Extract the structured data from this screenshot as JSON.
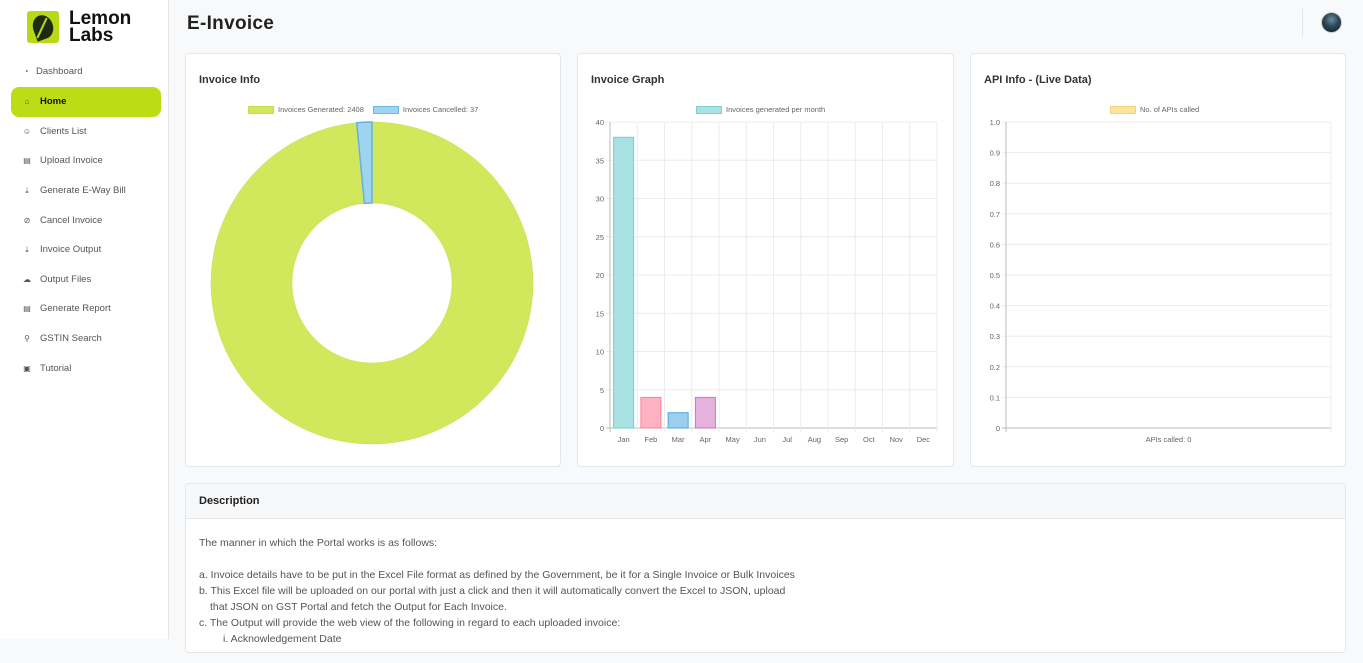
{
  "brand": {
    "line1": "Lemon",
    "line2": "Labs"
  },
  "page": {
    "title": "E-Invoice"
  },
  "sidebar": {
    "items": [
      {
        "label": "Dashboard",
        "icon": "gauge-icon"
      },
      {
        "label": "Home",
        "icon": "home-icon",
        "active": true
      },
      {
        "label": "Clients List",
        "icon": "users-icon"
      },
      {
        "label": "Upload Invoice",
        "icon": "file-icon"
      },
      {
        "label": "Generate E-Way Bill",
        "icon": "download-icon"
      },
      {
        "label": "Cancel Invoice",
        "icon": "ban-icon"
      },
      {
        "label": "Invoice Output",
        "icon": "download-icon"
      },
      {
        "label": "Output Files",
        "icon": "cloud-icon"
      },
      {
        "label": "Generate Report",
        "icon": "file-icon"
      },
      {
        "label": "GSTIN Search",
        "icon": "search-icon"
      },
      {
        "label": "Tutorial",
        "icon": "book-icon"
      }
    ]
  },
  "cards": {
    "invoice_info": {
      "title": "Invoice Info",
      "legend_generated": "Invoices Generated: 2408",
      "legend_cancelled": "Invoices Cancelled: 37"
    },
    "invoice_graph": {
      "title": "Invoice Graph",
      "legend": "Invoices generated per month"
    },
    "api_info": {
      "title": "API Info - (Live Data)",
      "legend": "No. of APIs called",
      "xlabel": "APIs called:  0"
    }
  },
  "chart_data": [
    {
      "type": "pie",
      "labels": [
        "Invoices Generated: 2408",
        "Invoices Cancelled: 37"
      ],
      "values": [
        2408,
        37
      ],
      "colors": [
        "#d2e85c",
        "#9fd4ee"
      ]
    },
    {
      "type": "bar",
      "categories": [
        "Jan",
        "Feb",
        "Mar",
        "Apr",
        "May",
        "Jun",
        "Jul",
        "Aug",
        "Sep",
        "Oct",
        "Nov",
        "Dec"
      ],
      "series": [
        {
          "name": "Invoices generated per month",
          "values": [
            38,
            4,
            2,
            4,
            0,
            0,
            0,
            0,
            0,
            0,
            0,
            0
          ]
        }
      ],
      "colors": [
        "#a8e2e3",
        "#ffb3c2",
        "#9ccfee",
        "#e5b1dd"
      ],
      "ylim": [
        0,
        40
      ],
      "yticks": [
        0,
        5,
        10,
        15,
        20,
        25,
        30,
        35,
        40
      ]
    },
    {
      "type": "bar",
      "categories": [
        "APIs called:  0"
      ],
      "series": [
        {
          "name": "No. of APIs called",
          "values": [
            0
          ]
        }
      ],
      "ylim": [
        0,
        1
      ],
      "yticks": [
        "0",
        "0.1",
        "0.2",
        "0.3",
        "0.4",
        "0.5",
        "0.6",
        "0.7",
        "0.8",
        "0.9",
        "1.0"
      ],
      "colors": [
        "#fbe49c"
      ]
    }
  ],
  "description": {
    "title": "Description",
    "intro": "The manner in which the Portal works is as follows:",
    "a": "a. Invoice details have to be put in the Excel File format as defined by the Government, be it for a Single Invoice or Bulk Invoices",
    "b1": "b. This Excel file will be uploaded on our portal with just a click and then it will automatically convert the Excel to JSON, upload",
    "b2": "that JSON on GST Portal and fetch the Output for Each Invoice.",
    "c": "c. The Output will provide the web view of the following in regard to each uploaded invoice:",
    "c1": "i. Acknowledgement Date"
  }
}
